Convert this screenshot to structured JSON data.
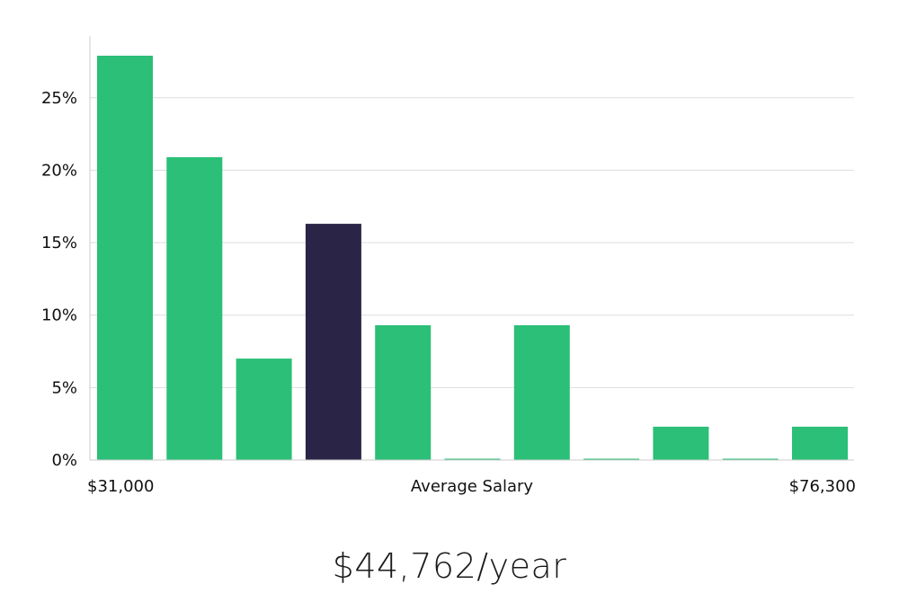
{
  "chart_data": {
    "type": "bar",
    "title": "",
    "xlabel": "Average Salary",
    "ylabel": "",
    "x_range_labels": [
      "$31,000",
      "$76,300"
    ],
    "y_ticks": [
      0,
      5,
      10,
      15,
      20,
      25
    ],
    "y_tick_labels": [
      "0%",
      "5%",
      "10%",
      "15%",
      "20%",
      "25%"
    ],
    "ylim": [
      0,
      29
    ],
    "grid": "horizontal",
    "values": [
      27.9,
      20.9,
      7.0,
      16.3,
      9.3,
      0,
      9.3,
      0,
      2.3,
      0,
      2.3
    ],
    "highlight_index": 3,
    "colors": {
      "bar": "#2bbf77",
      "highlight": "#2a2546",
      "grid": "#dddddd",
      "axis": "#cccccc"
    }
  },
  "summary": {
    "salary_text": "$44,762/year"
  }
}
